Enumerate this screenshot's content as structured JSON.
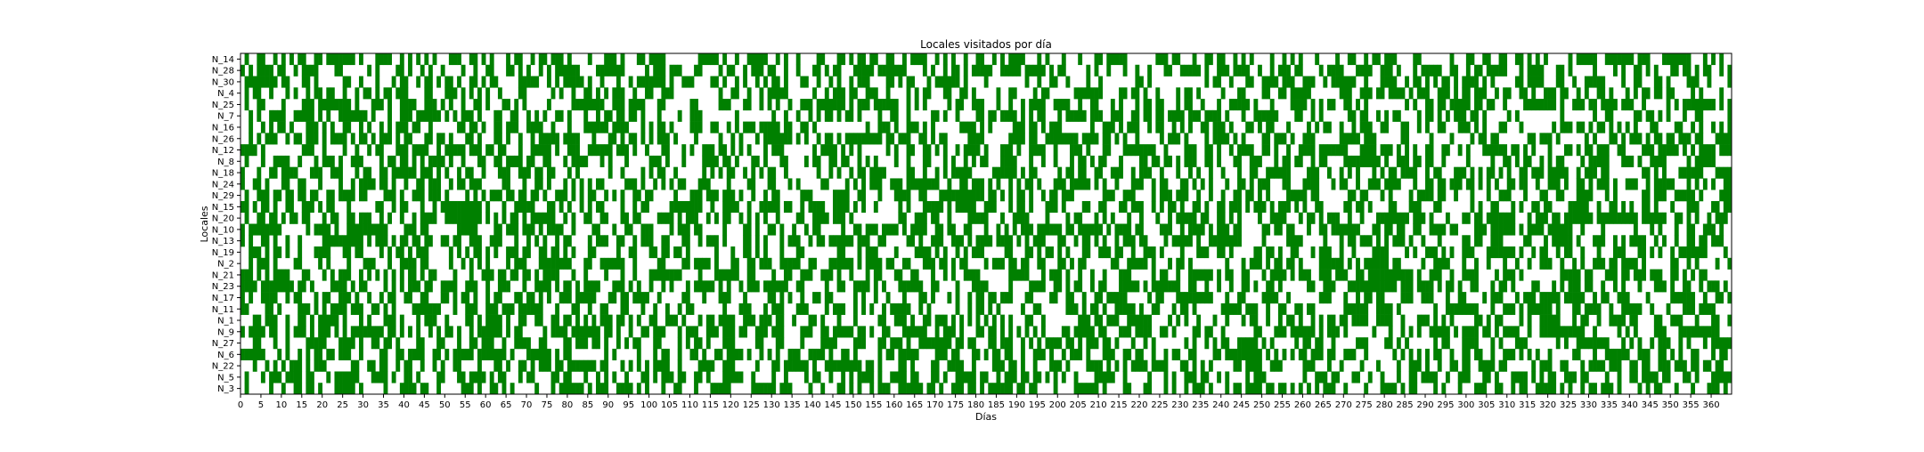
{
  "chart_data": {
    "type": "heatmap",
    "title": "Locales visitados por día",
    "xlabel": "Días",
    "ylabel": "Locales",
    "xlim": [
      0,
      365
    ],
    "x_ticks": [
      0,
      5,
      10,
      15,
      20,
      25,
      30,
      35,
      40,
      45,
      50,
      55,
      60,
      65,
      70,
      75,
      80,
      85,
      90,
      95,
      100,
      105,
      110,
      115,
      120,
      125,
      130,
      135,
      140,
      145,
      150,
      155,
      160,
      165,
      170,
      175,
      180,
      185,
      190,
      195,
      200,
      205,
      210,
      215,
      220,
      225,
      230,
      235,
      240,
      245,
      250,
      255,
      260,
      265,
      270,
      275,
      280,
      285,
      290,
      295,
      300,
      305,
      310,
      315,
      320,
      325,
      330,
      335,
      340,
      345,
      350,
      355,
      360
    ],
    "categories": [
      "N_14",
      "N_28",
      "N_30",
      "N_4",
      "N_25",
      "N_7",
      "N_16",
      "N_26",
      "N_12",
      "N_8",
      "N_18",
      "N_24",
      "N_29",
      "N_15",
      "N_20",
      "N_10",
      "N_13",
      "N_19",
      "N_2",
      "N_21",
      "N_23",
      "N_17",
      "N_11",
      "N_1",
      "N_9",
      "N_27",
      "N_6",
      "N_22",
      "N_5",
      "N_3"
    ],
    "days": 365,
    "visited_color": "#008000",
    "not_visited_color": "#ffffff",
    "grid": false
  }
}
